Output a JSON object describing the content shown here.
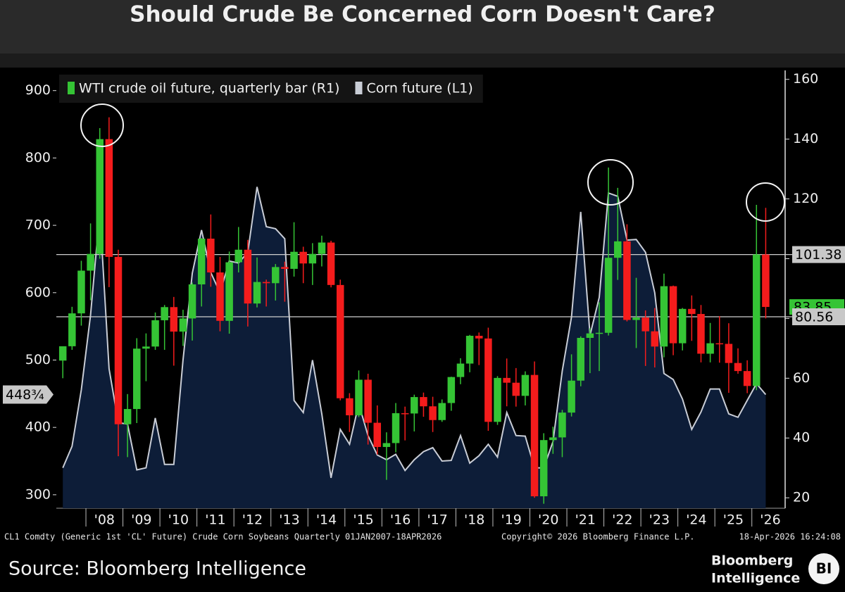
{
  "chart_data": {
    "type": "combo",
    "title": "Should Crude Be Concerned Corn Doesn't Care?",
    "x": [
      2007.375,
      2007.625,
      2007.875,
      2008.125,
      2008.375,
      2008.625,
      2008.875,
      2009.125,
      2009.375,
      2009.625,
      2009.875,
      2010.125,
      2010.375,
      2010.625,
      2010.875,
      2011.125,
      2011.375,
      2011.625,
      2011.875,
      2012.125,
      2012.375,
      2012.625,
      2012.875,
      2013.125,
      2013.375,
      2013.625,
      2013.875,
      2014.125,
      2014.375,
      2014.625,
      2014.875,
      2015.125,
      2015.375,
      2015.625,
      2015.875,
      2016.125,
      2016.375,
      2016.625,
      2016.875,
      2017.125,
      2017.375,
      2017.625,
      2017.875,
      2018.125,
      2018.375,
      2018.625,
      2018.875,
      2019.125,
      2019.375,
      2019.625,
      2019.875,
      2020.125,
      2020.375,
      2020.625,
      2020.875,
      2021.125,
      2021.375,
      2021.625,
      2021.875,
      2022.125,
      2022.375,
      2022.625,
      2022.875,
      2023.125,
      2023.375,
      2023.625,
      2023.875,
      2024.125,
      2024.375,
      2024.625,
      2024.875,
      2025.125,
      2025.375,
      2025.625,
      2025.875,
      2026.125,
      2026.375
    ],
    "xlim": [
      2007.2,
      2026.9
    ],
    "xticks": [
      {
        "value": 2008.5,
        "label": "'08"
      },
      {
        "value": 2009.5,
        "label": "'09"
      },
      {
        "value": 2010.5,
        "label": "'10"
      },
      {
        "value": 2011.5,
        "label": "'11"
      },
      {
        "value": 2012.5,
        "label": "'12"
      },
      {
        "value": 2013.5,
        "label": "'13"
      },
      {
        "value": 2014.5,
        "label": "'14"
      },
      {
        "value": 2015.5,
        "label": "'15"
      },
      {
        "value": 2016.5,
        "label": "'16"
      },
      {
        "value": 2017.5,
        "label": "'17"
      },
      {
        "value": 2018.5,
        "label": "'18"
      },
      {
        "value": 2019.5,
        "label": "'19"
      },
      {
        "value": 2020.5,
        "label": "'20"
      },
      {
        "value": 2021.5,
        "label": "'21"
      },
      {
        "value": 2022.5,
        "label": "'22"
      },
      {
        "value": 2023.5,
        "label": "'23"
      },
      {
        "value": 2024.5,
        "label": "'24"
      },
      {
        "value": 2025.5,
        "label": "'25"
      },
      {
        "value": 2026.5,
        "label": "'26"
      }
    ],
    "xtick_marks": [
      2008,
      2009,
      2010,
      2011,
      2012,
      2013,
      2014,
      2015,
      2016,
      2017,
      2018,
      2019,
      2020,
      2021,
      2022,
      2023,
      2024,
      2025,
      2026
    ],
    "ylim": [
      280,
      930
    ],
    "yticks": [
      300,
      400,
      500,
      600,
      700,
      800,
      900
    ],
    "y2lim": [
      16.5,
      163
    ],
    "y2ticks": [
      20,
      40,
      60,
      80,
      100,
      120,
      140,
      160
    ],
    "legend": "top-left",
    "series": [
      {
        "name": "WTI crude oil future, quarterly bar (R1)",
        "type": "candlestick",
        "axis": "y2",
        "up_color": "#35c435",
        "down_color": "#f41c1c",
        "open": [
          65.9,
          70.7,
          81.7,
          96.0,
          101.6,
          140.0,
          100.6,
          44.6,
          49.7,
          69.9,
          70.6,
          79.4,
          83.8,
          75.6,
          80.0,
          91.4,
          106.7,
          95.4,
          79.2,
          98.8,
          103.0,
          85.0,
          92.2,
          91.8,
          97.2,
          96.6,
          102.3,
          98.4,
          101.6,
          105.4,
          91.2,
          53.3,
          47.6,
          59.5,
          45.1,
          37.0,
          38.3,
          48.3,
          48.2,
          53.7,
          50.6,
          46.0,
          51.7,
          60.4,
          64.9,
          74.2,
          73.3,
          45.4,
          60.1,
          58.5,
          54.1,
          61.1,
          20.5,
          39.3,
          40.2,
          48.5,
          59.2,
          73.5,
          75.0,
          75.2,
          100.3,
          105.8,
          79.5,
          80.3,
          75.7,
          70.6,
          90.8,
          71.7,
          83.2,
          81.5,
          68.2,
          71.7,
          71.5,
          65.1,
          62.4,
          57.4,
          101.4
        ],
        "high": [
          70.5,
          83.9,
          99.3,
          111.8,
          143.7,
          147.3,
          103.0,
          54.7,
          73.4,
          75.0,
          82.0,
          84.5,
          87.2,
          82.9,
          92.0,
          106.9,
          114.8,
          100.6,
          102.4,
          110.6,
          106.3,
          100.4,
          93.0,
          98.2,
          99.0,
          112.2,
          104.0,
          105.2,
          107.7,
          106.0,
          93.0,
          55.0,
          62.6,
          61.5,
          50.9,
          41.9,
          51.7,
          50.5,
          54.5,
          55.2,
          53.8,
          52.9,
          60.5,
          66.7,
          74.5,
          75.3,
          76.9,
          60.7,
          66.6,
          63.4,
          62.3,
          65.6,
          41.6,
          43.8,
          49.4,
          68.0,
          74.0,
          76.7,
          85.4,
          130.5,
          123.7,
          111.5,
          93.6,
          82.7,
          83.5,
          95.0,
          91.0,
          83.5,
          87.7,
          84.5,
          78.5,
          80.8,
          78.4,
          70.0,
          66.0,
          118.0,
          117.0
        ],
        "low": [
          60.0,
          69.5,
          77.6,
          86.1,
          100.0,
          90.5,
          33.9,
          33.6,
          45.0,
          59.0,
          69.5,
          69.5,
          64.2,
          70.8,
          72.6,
          84.0,
          90.6,
          75.7,
          74.9,
          95.4,
          77.3,
          83.7,
          84.0,
          86.0,
          85.6,
          94.0,
          91.8,
          91.2,
          97.4,
          90.4,
          52.6,
          42.0,
          47.0,
          37.8,
          34.5,
          26.0,
          35.2,
          39.2,
          42.2,
          47.1,
          42.0,
          45.4,
          49.1,
          58.0,
          62.0,
          64.4,
          42.4,
          44.4,
          50.6,
          50.5,
          50.9,
          20.0,
          18.0,
          34.7,
          33.6,
          47.2,
          57.3,
          61.7,
          62.4,
          74.3,
          92.9,
          79.0,
          70.1,
          64.1,
          63.6,
          67.0,
          67.7,
          69.3,
          72.5,
          65.3,
          65.3,
          65.2,
          55.1,
          61.5,
          55.0,
          56.0,
          80.0
        ],
        "close": [
          70.7,
          81.7,
          96.0,
          101.6,
          140.0,
          100.6,
          44.6,
          49.7,
          69.9,
          70.6,
          79.4,
          83.8,
          75.6,
          80.0,
          91.4,
          106.7,
          95.4,
          79.2,
          98.8,
          103.0,
          85.0,
          92.2,
          91.8,
          97.2,
          96.6,
          102.3,
          98.4,
          101.6,
          105.4,
          91.2,
          53.3,
          47.6,
          59.5,
          45.1,
          37.0,
          38.3,
          48.3,
          48.2,
          53.7,
          50.6,
          46.0,
          51.7,
          60.4,
          64.9,
          74.2,
          73.3,
          45.4,
          60.1,
          58.5,
          54.1,
          61.1,
          20.5,
          39.3,
          40.2,
          48.5,
          59.2,
          73.5,
          75.0,
          75.2,
          100.3,
          105.8,
          79.5,
          80.3,
          75.7,
          70.6,
          90.8,
          71.7,
          83.2,
          81.5,
          68.2,
          71.7,
          71.5,
          65.1,
          62.4,
          57.4,
          101.4,
          83.85
        ]
      },
      {
        "name": "Corn future (L1)",
        "type": "area",
        "axis": "y",
        "color": "#c9cdd6",
        "fill": "#0d1d38",
        "values": [
          340,
          372,
          456,
          567,
          720,
          487,
          407,
          405,
          337,
          340,
          414,
          345,
          345,
          500,
          629,
          693,
          630,
          600,
          647,
          644,
          660,
          757,
          698,
          695,
          680,
          440,
          422,
          500,
          420,
          325,
          397,
          375,
          435,
          388,
          359,
          352,
          360,
          336,
          352,
          364,
          370,
          350,
          351,
          388,
          347,
          358,
          375,
          356,
          422,
          388,
          387,
          340,
          340,
          379,
          484,
          564,
          720,
          537,
          593,
          748,
          743,
          678,
          679,
          660,
          600,
          480,
          471,
          442,
          397,
          423,
          457,
          457,
          420,
          415,
          440,
          465,
          448.75
        ],
        "value_labels": [
          null,
          null,
          null,
          null,
          null,
          null,
          null,
          null,
          null,
          null,
          null,
          null,
          null,
          null,
          null,
          null,
          null,
          null,
          null,
          null,
          null,
          null,
          null,
          null,
          null,
          null,
          null,
          null,
          null,
          null,
          null,
          null,
          null,
          null,
          null,
          null,
          null,
          null,
          null,
          null,
          null,
          null,
          null,
          null,
          null,
          null,
          null,
          null,
          null,
          null,
          null,
          null,
          null,
          null,
          null,
          null,
          null,
          null,
          null,
          null,
          null,
          null,
          null,
          null,
          null,
          null,
          null,
          null,
          null,
          null,
          null,
          null,
          null,
          null,
          null,
          null,
          "448¾"
        ]
      }
    ],
    "reference_lines": [
      {
        "value": 101.38,
        "axis": "y2"
      },
      {
        "value": 80.56,
        "axis": "y2"
      }
    ]
  },
  "footer": {
    "description": "CL1 Comdty (Generic 1st 'CL' Future) Crude Corn Soybeans Quarterly 01JAN2007-18APR2026",
    "copyright": "Copyright© 2026 Bloomberg Finance L.P.",
    "timestamp": "18-Apr-2026 16:24:08",
    "source": "Source: Bloomberg Intelligence",
    "logo": [
      "Bloomberg",
      "Intelligence"
    ],
    "badge": "BI"
  }
}
